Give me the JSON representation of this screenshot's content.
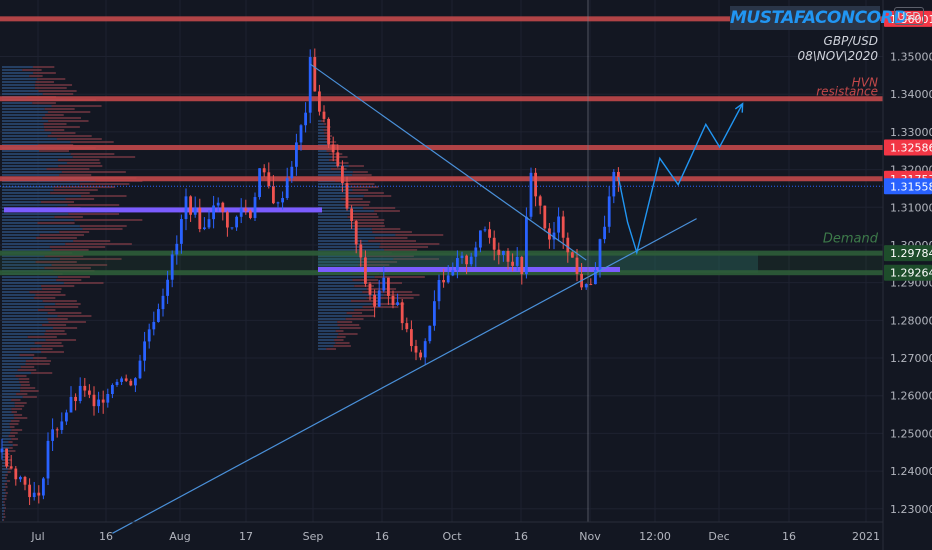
{
  "watermark": "MUSTAFACONCORD",
  "currency": "USD",
  "symbol": "GBP/USD",
  "date": "08\\NOV\\2020",
  "colors": {
    "background": "#131722",
    "up": "#2962ff",
    "down": "#ef5350",
    "resistance": "#c2484a",
    "demand": "#2e5d38",
    "poc": "#7b5cff",
    "badge_red": "#f23645",
    "badge_green": "#1e4d2b",
    "badge_blue": "#2962ff"
  },
  "chart_data": {
    "type": "line",
    "x_ticks": [
      "Jul",
      "16",
      "Aug",
      "17",
      "Sep",
      "16",
      "Oct",
      "16",
      "Nov",
      "12:00",
      "Dec",
      "16",
      "2021"
    ],
    "y_ticks": [
      "1.23000",
      "1.24000",
      "1.25000",
      "1.26000",
      "1.27000",
      "1.28000",
      "1.29000",
      "1.30000",
      "1.31000",
      "1.32000",
      "1.33000",
      "1.34000",
      "1.35000",
      "1.36000"
    ],
    "ylim": [
      1.2265,
      1.365
    ],
    "price_path": [
      [
        0,
        1.245
      ],
      [
        4,
        1.238
      ],
      [
        8,
        1.232
      ],
      [
        10,
        1.248
      ],
      [
        12,
        1.252
      ],
      [
        15,
        1.258
      ],
      [
        18,
        1.262
      ],
      [
        20,
        1.256
      ],
      [
        23,
        1.262
      ],
      [
        26,
        1.266
      ],
      [
        28,
        1.262
      ],
      [
        30,
        1.27
      ],
      [
        32,
        1.278
      ],
      [
        34,
        1.284
      ],
      [
        36,
        1.292
      ],
      [
        38,
        1.3
      ],
      [
        40,
        1.312
      ],
      [
        42,
        1.308
      ],
      [
        44,
        1.304
      ],
      [
        46,
        1.312
      ],
      [
        48,
        1.308
      ],
      [
        50,
        1.304
      ],
      [
        52,
        1.31
      ],
      [
        54,
        1.308
      ],
      [
        56,
        1.32
      ],
      [
        58,
        1.315
      ],
      [
        60,
        1.31
      ],
      [
        62,
        1.318
      ],
      [
        64,
        1.326
      ],
      [
        66,
        1.336
      ],
      [
        67,
        1.348
      ],
      [
        69,
        1.336
      ],
      [
        71,
        1.328
      ],
      [
        73,
        1.32
      ],
      [
        75,
        1.31
      ],
      [
        77,
        1.3
      ],
      [
        79,
        1.29
      ],
      [
        81,
        1.284
      ],
      [
        83,
        1.29
      ],
      [
        85,
        1.286
      ],
      [
        87,
        1.28
      ],
      [
        89,
        1.275
      ],
      [
        91,
        1.27
      ],
      [
        93,
        1.28
      ],
      [
        95,
        1.292
      ],
      [
        97,
        1.29
      ],
      [
        99,
        1.295
      ],
      [
        101,
        1.296
      ],
      [
        103,
        1.3
      ],
      [
        105,
        1.304
      ],
      [
        107,
        1.3
      ],
      [
        109,
        1.298
      ],
      [
        111,
        1.296
      ],
      [
        113,
        1.294
      ],
      [
        115,
        1.318
      ],
      [
        117,
        1.31
      ],
      [
        119,
        1.3
      ],
      [
        121,
        1.306
      ],
      [
        123,
        1.3
      ],
      [
        125,
        1.292
      ],
      [
        127,
        1.288
      ],
      [
        129,
        1.294
      ],
      [
        131,
        1.306
      ],
      [
        133,
        1.318
      ],
      [
        134,
        1.315
      ]
    ],
    "projection_path": [
      [
        134,
        1.318
      ],
      [
        136,
        1.306
      ],
      [
        138,
        1.298
      ],
      [
        143,
        1.323
      ],
      [
        147,
        1.316
      ],
      [
        153,
        1.332
      ],
      [
        156,
        1.326
      ],
      [
        161,
        1.3375
      ]
    ],
    "trendlines": [
      {
        "from": [
          67,
          1.348
        ],
        "to": [
          127,
          1.296
        ]
      },
      {
        "from": [
          24,
          1.2235
        ],
        "to": [
          151,
          1.307
        ]
      }
    ],
    "levels": [
      {
        "type": "resistance",
        "price": 1.36
      },
      {
        "type": "resistance",
        "price": 1.3388
      },
      {
        "type": "resistance",
        "price": 1.32586
      },
      {
        "type": "resistance",
        "price": 1.31757
      },
      {
        "type": "demand",
        "price": 1.29784
      },
      {
        "type": "demand",
        "price": 1.29264
      }
    ],
    "poc_lines": [
      1.3093,
      1.2935
    ],
    "current_price": 1.31558,
    "price_badges": [
      {
        "label": "1.36001",
        "price": 1.36,
        "kind": "red"
      },
      {
        "label": "1.32586",
        "price": 1.32586,
        "kind": "red"
      },
      {
        "label": "1.31757",
        "price": 1.31757,
        "kind": "red"
      },
      {
        "label": "1.31558",
        "price": 1.31558,
        "kind": "blue"
      },
      {
        "label": "1.29784",
        "price": 1.29784,
        "kind": "green"
      },
      {
        "label": "1.29264",
        "price": 1.29264,
        "kind": "green"
      }
    ],
    "annotations": [
      {
        "text": "HVN",
        "price": 1.3412,
        "color": "#c2484a"
      },
      {
        "text": "resistance",
        "price": 1.3388,
        "color": "#c2484a"
      },
      {
        "text": "Demand",
        "price": 1.2998,
        "color": "#3d7a4a"
      }
    ]
  }
}
